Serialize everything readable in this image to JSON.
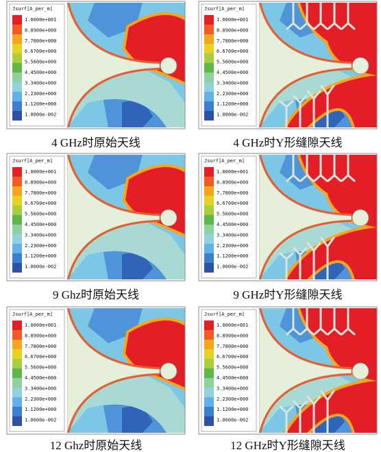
{
  "legend": {
    "title": "Jsurf[A_per_m]",
    "labels": [
      "1.0000e+001",
      "8.8900e+000",
      "7.7800e+000",
      "6.6700e+000",
      "5.5600e+000",
      "4.4500e+000",
      "3.3400e+000",
      "2.2300e+000",
      "1.1200e+000",
      "1.0000e-002"
    ]
  },
  "panels": [
    {
      "caption": "4 GHz时原始天线"
    },
    {
      "caption": "4 GHz时Y形缝隙天线"
    },
    {
      "caption": "9 Ghz时原始天线"
    },
    {
      "caption": "9 GHz时Y形缝隙天线"
    },
    {
      "caption": "12 Ghz时原始天线"
    },
    {
      "caption": "12 GHz时Y形缝隙天线"
    }
  ]
}
